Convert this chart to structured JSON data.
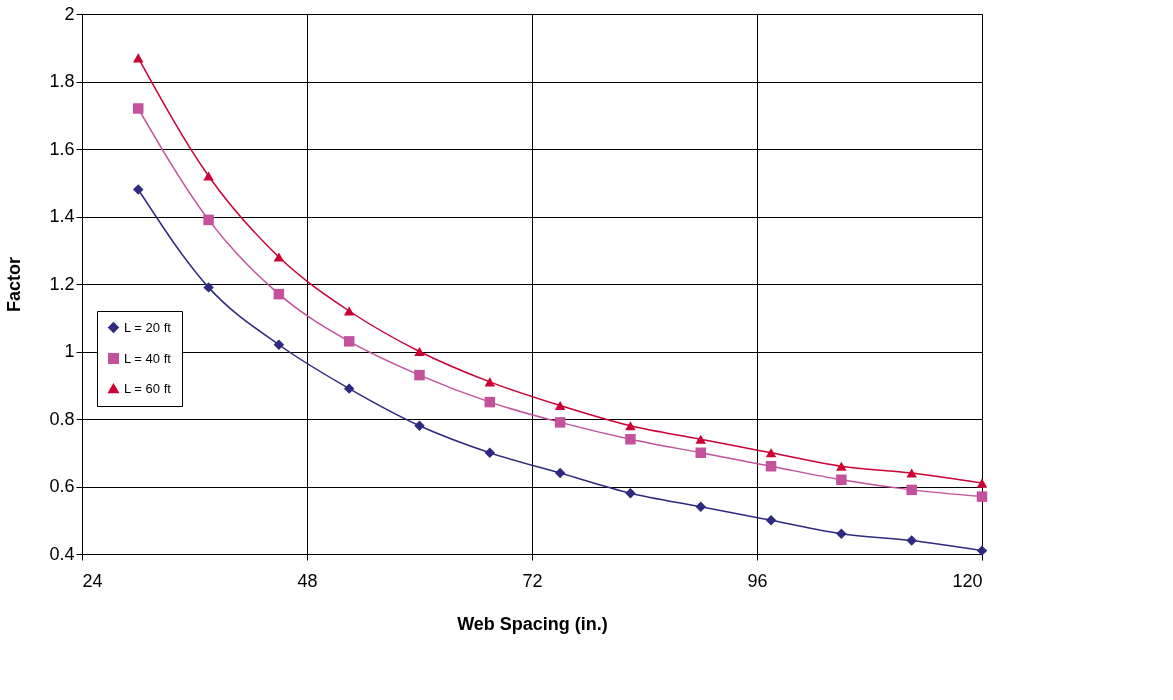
{
  "chart_data": {
    "type": "line",
    "xlabel": "Web Spacing (in.)",
    "ylabel": "Factor",
    "x": [
      30,
      37.5,
      45,
      52.5,
      60,
      67.5,
      75,
      82.5,
      90,
      97.5,
      105,
      112.5,
      120
    ],
    "series": [
      {
        "name": "L = 20 ft",
        "color": "#2e2a80",
        "marker": "diamond",
        "values": [
          1.48,
          1.19,
          1.02,
          0.89,
          0.78,
          0.7,
          0.64,
          0.58,
          0.54,
          0.5,
          0.46,
          0.44,
          0.41
        ]
      },
      {
        "name": "L = 40 ft",
        "color": "#c4519c",
        "marker": "square",
        "values": [
          1.72,
          1.39,
          1.17,
          1.03,
          0.93,
          0.85,
          0.79,
          0.74,
          0.7,
          0.66,
          0.62,
          0.59,
          0.57
        ]
      },
      {
        "name": "L = 60 ft",
        "color": "#cc0033",
        "marker": "triangle",
        "values": [
          1.87,
          1.52,
          1.28,
          1.12,
          1.0,
          0.91,
          0.84,
          0.78,
          0.74,
          0.7,
          0.66,
          0.64,
          0.61
        ]
      }
    ],
    "xlim": [
      24,
      120
    ],
    "xticks": [
      24,
      48,
      72,
      96,
      120
    ],
    "ylim": [
      0.4,
      2
    ],
    "yticks": [
      0.4,
      0.6,
      0.8,
      {
        "value": 1,
        "label": "1"
      },
      1.2,
      1.4,
      1.6,
      1.8,
      {
        "value": 2,
        "label": "2"
      }
    ],
    "grid": true,
    "legend": "left",
    "line_style": "solid"
  }
}
